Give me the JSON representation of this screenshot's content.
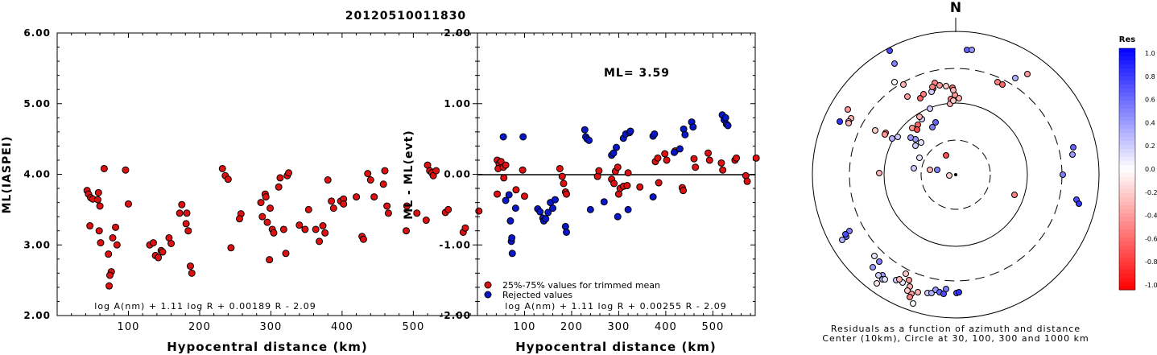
{
  "figure_title": "20120510011830",
  "chart_data": [
    {
      "type": "scatter",
      "id": "ml-vs-distance",
      "xlabel": "Hypocentral distance (km)",
      "ylabel": "ML(IASPEI)",
      "xlim": [
        0,
        590
      ],
      "ylim": [
        2.0,
        6.0
      ],
      "xticks": [
        "100",
        "200",
        "300",
        "400",
        "500"
      ],
      "yticks": [
        "2.00",
        "3.00",
        "4.00",
        "5.00",
        "6.00"
      ],
      "formula": "log A(nm) + 1.11 log R + 0.00189 R - 2.09",
      "marker_color": "#dd1111",
      "points": [
        [
          42,
          3.77
        ],
        [
          44,
          3.72
        ],
        [
          47,
          3.67
        ],
        [
          50,
          3.65
        ],
        [
          46,
          3.27
        ],
        [
          58,
          3.74
        ],
        [
          57,
          3.64
        ],
        [
          60,
          3.55
        ],
        [
          66,
          4.08
        ],
        [
          59,
          3.2
        ],
        [
          61,
          3.03
        ],
        [
          72,
          2.87
        ],
        [
          76,
          2.62
        ],
        [
          74,
          2.57
        ],
        [
          73,
          2.42
        ],
        [
          78,
          3.1
        ],
        [
          82,
          3.25
        ],
        [
          84,
          3.0
        ],
        [
          96,
          4.06
        ],
        [
          100,
          3.58
        ],
        [
          130,
          3.0
        ],
        [
          135,
          3.03
        ],
        [
          138,
          2.85
        ],
        [
          142,
          2.82
        ],
        [
          146,
          2.92
        ],
        [
          148,
          2.9
        ],
        [
          157,
          3.1
        ],
        [
          160,
          3.02
        ],
        [
          175,
          3.57
        ],
        [
          172,
          3.45
        ],
        [
          182,
          3.45
        ],
        [
          181,
          3.3
        ],
        [
          184,
          3.2
        ],
        [
          187,
          2.7
        ],
        [
          189,
          2.6
        ],
        [
          232,
          4.08
        ],
        [
          236,
          3.98
        ],
        [
          240,
          3.93
        ],
        [
          244,
          2.96
        ],
        [
          258,
          3.44
        ],
        [
          256,
          3.37
        ],
        [
          286,
          3.6
        ],
        [
          288,
          3.4
        ],
        [
          292,
          3.72
        ],
        [
          293,
          3.68
        ],
        [
          295,
          3.32
        ],
        [
          299,
          3.52
        ],
        [
          302,
          3.22
        ],
        [
          298,
          2.79
        ],
        [
          304,
          3.17
        ],
        [
          311,
          3.82
        ],
        [
          313,
          3.95
        ],
        [
          318,
          3.22
        ],
        [
          321,
          2.88
        ],
        [
          323,
          3.98
        ],
        [
          325,
          4.02
        ],
        [
          340,
          3.28
        ],
        [
          348,
          3.22
        ],
        [
          353,
          3.5
        ],
        [
          363,
          3.22
        ],
        [
          368,
          3.05
        ],
        [
          373,
          3.27
        ],
        [
          376,
          3.17
        ],
        [
          380,
          3.92
        ],
        [
          385,
          3.62
        ],
        [
          388,
          3.52
        ],
        [
          398,
          3.62
        ],
        [
          402,
          3.65
        ],
        [
          402,
          3.58
        ],
        [
          420,
          3.68
        ],
        [
          428,
          3.12
        ],
        [
          430,
          3.08
        ],
        [
          436,
          4.01
        ],
        [
          440,
          3.92
        ],
        [
          445,
          3.68
        ],
        [
          458,
          3.86
        ],
        [
          460,
          4.05
        ],
        [
          463,
          3.55
        ],
        [
          465,
          3.45
        ],
        [
          490,
          3.2
        ],
        [
          491,
          3.55
        ],
        [
          505,
          3.45
        ],
        [
          518,
          3.35
        ],
        [
          520,
          4.13
        ],
        [
          523,
          4.05
        ],
        [
          526,
          4.02
        ],
        [
          528,
          3.98
        ],
        [
          532,
          4.05
        ],
        [
          545,
          3.46
        ],
        [
          549,
          3.5
        ],
        [
          570,
          3.18
        ],
        [
          573,
          3.24
        ],
        [
          592,
          3.48
        ]
      ]
    },
    {
      "type": "scatter",
      "id": "residual-vs-distance",
      "xlabel": "Hypocentral distance (km)",
      "ylabel": "ML - ML(evt)",
      "xlim": [
        0,
        590
      ],
      "ylim": [
        -2.0,
        2.0
      ],
      "xticks": [
        "100",
        "200",
        "300",
        "400",
        "500"
      ],
      "yticks": [
        "-2.00",
        "-1.00",
        "0.00",
        "1.00",
        "2.00"
      ],
      "annotation": "ML= 3.59",
      "formula": "log A(nm) + 1.11 log R + 0.00255 R - 2.09",
      "legend": [
        {
          "label": "25%-75% values for trimmed mean",
          "color": "#dd1111"
        },
        {
          "label": "Rejected values",
          "color": "#0a17c8"
        }
      ],
      "used_points": [
        [
          42,
          0.2
        ],
        [
          46,
          0.15
        ],
        [
          44,
          0.08
        ],
        [
          50,
          0.18
        ],
        [
          55,
          0.1
        ],
        [
          60,
          0.13
        ],
        [
          42,
          -0.28
        ],
        [
          56,
          -0.05
        ],
        [
          82,
          -0.22
        ],
        [
          96,
          0.06
        ],
        [
          100,
          -0.31
        ],
        [
          175,
          0.08
        ],
        [
          180,
          -0.03
        ],
        [
          183,
          -0.13
        ],
        [
          187,
          -0.25
        ],
        [
          189,
          -0.28
        ],
        [
          255,
          -0.03
        ],
        [
          258,
          0.05
        ],
        [
          285,
          -0.07
        ],
        [
          290,
          -0.13
        ],
        [
          293,
          0.04
        ],
        [
          298,
          0.1
        ],
        [
          300,
          -0.28
        ],
        [
          303,
          -0.2
        ],
        [
          310,
          -0.17
        ],
        [
          318,
          -0.16
        ],
        [
          320,
          0.02
        ],
        [
          345,
          -0.18
        ],
        [
          378,
          0.18
        ],
        [
          383,
          0.23
        ],
        [
          385,
          -0.12
        ],
        [
          398,
          0.29
        ],
        [
          402,
          0.2
        ],
        [
          420,
          0.33
        ],
        [
          435,
          -0.19
        ],
        [
          437,
          -0.23
        ],
        [
          460,
          0.22
        ],
        [
          463,
          0.1
        ],
        [
          490,
          0.3
        ],
        [
          493,
          0.2
        ],
        [
          518,
          0.16
        ],
        [
          521,
          0.06
        ],
        [
          547,
          0.2
        ],
        [
          550,
          0.23
        ],
        [
          570,
          -0.02
        ],
        [
          573,
          -0.1
        ],
        [
          592,
          0.23
        ]
      ],
      "rejected_points": [
        [
          55,
          0.53
        ],
        [
          67,
          -0.29
        ],
        [
          70,
          -0.66
        ],
        [
          72,
          -0.95
        ],
        [
          73,
          -0.9
        ],
        [
          74,
          -1.12
        ],
        [
          81,
          -0.48
        ],
        [
          97,
          0.53
        ],
        [
          60,
          -0.37
        ],
        [
          128,
          -0.49
        ],
        [
          133,
          -0.53
        ],
        [
          139,
          -0.62
        ],
        [
          141,
          -0.66
        ],
        [
          145,
          -0.63
        ],
        [
          150,
          -0.54
        ],
        [
          155,
          -0.4
        ],
        [
          160,
          -0.48
        ],
        [
          165,
          -0.36
        ],
        [
          187,
          -0.74
        ],
        [
          189,
          -0.82
        ],
        [
          228,
          0.63
        ],
        [
          230,
          0.53
        ],
        [
          233,
          0.5
        ],
        [
          237,
          0.48
        ],
        [
          240,
          -0.5
        ],
        [
          269,
          -0.39
        ],
        [
          285,
          0.27
        ],
        [
          289,
          0.3
        ],
        [
          295,
          0.38
        ],
        [
          298,
          -0.6
        ],
        [
          310,
          0.51
        ],
        [
          315,
          0.57
        ],
        [
          323,
          0.59
        ],
        [
          325,
          0.61
        ],
        [
          320,
          -0.5
        ],
        [
          373,
          0.54
        ],
        [
          376,
          0.57
        ],
        [
          373,
          -0.32
        ],
        [
          418,
          0.31
        ],
        [
          430,
          0.36
        ],
        [
          438,
          0.64
        ],
        [
          441,
          0.56
        ],
        [
          455,
          0.74
        ],
        [
          458,
          0.67
        ],
        [
          520,
          0.84
        ],
        [
          524,
          0.77
        ],
        [
          527,
          0.8
        ],
        [
          529,
          0.71
        ],
        [
          532,
          0.69
        ]
      ]
    },
    {
      "type": "scatter",
      "id": "azimuth-residual-map",
      "north_label": "N",
      "caption": [
        "Residuals as a function of azimuth and distance",
        "Center (10km), Circle at 30, 100, 300 and 1000 km"
      ],
      "colorbar_title": "Res",
      "colorbar_ticks": [
        "1.0",
        "0.8",
        "0.6",
        "0.4",
        "0.2",
        "0.0",
        "-0.2",
        "-0.4",
        "-0.6",
        "-0.8",
        "-1.0"
      ],
      "station_residuals": [
        [
          -82,
          -154,
          0.7
        ],
        [
          -76,
          -138,
          0.5
        ],
        [
          -76,
          -115,
          0.0
        ],
        [
          -65,
          -112,
          -0.3
        ],
        [
          -60,
          -97,
          -0.4
        ],
        [
          -44,
          -95,
          -0.6
        ],
        [
          -40,
          -100,
          -0.5
        ],
        [
          -28,
          -107,
          -0.7
        ],
        [
          -26,
          -114,
          -0.5
        ],
        [
          -20,
          -111,
          -0.4
        ],
        [
          -30,
          -103,
          0.2
        ],
        [
          -12,
          -110,
          -0.2
        ],
        [
          -4,
          -108,
          -0.6
        ],
        [
          -29,
          -109,
          -0.5
        ],
        [
          4,
          -95,
          -0.3
        ],
        [
          52,
          -115,
          -0.5
        ],
        [
          58,
          -112,
          -0.6
        ],
        [
          14,
          -155,
          0.6
        ],
        [
          20,
          -155,
          0.4
        ],
        [
          -29,
          -59,
          0.5
        ],
        [
          -47,
          -62,
          -0.6
        ],
        [
          -54,
          -58,
          -0.4
        ],
        [
          -48,
          -56,
          -0.7
        ],
        [
          -25,
          -65,
          0.6
        ],
        [
          -32,
          -82,
          0.2
        ],
        [
          -42,
          -69,
          0.2
        ],
        [
          -45,
          -72,
          -0.3
        ],
        [
          -6,
          -94,
          -0.5
        ],
        [
          -7,
          -88,
          -0.3
        ],
        [
          -3,
          -92,
          -0.2
        ],
        [
          -1,
          -99,
          -0.4
        ],
        [
          -3,
          -105,
          -0.3
        ],
        [
          -134,
          -81,
          -0.4
        ],
        [
          -130,
          -70,
          -0.3
        ],
        [
          -133,
          -66,
          -0.2
        ],
        [
          -133,
          -64,
          -0.3
        ],
        [
          -50,
          -44,
          0.4
        ],
        [
          -56,
          -46,
          0.4
        ],
        [
          -45,
          -21,
          0.1
        ],
        [
          -43,
          -40,
          0.1
        ],
        [
          -50,
          -36,
          0.2
        ],
        [
          -23,
          -6,
          0.5
        ],
        [
          -12,
          -24,
          -0.7
        ],
        [
          -8,
          1,
          -0.2
        ],
        [
          -32,
          -6,
          -0.3
        ],
        [
          74,
          -120,
          0.3
        ],
        [
          89,
          -125,
          -0.4
        ],
        [
          133,
          0,
          0.5
        ],
        [
          145,
          -25,
          0.4
        ],
        [
          146,
          -34,
          0.6
        ],
        [
          150,
          31,
          0.7
        ],
        [
          153,
          36,
          0.8
        ],
        [
          73,
          25,
          -0.5
        ],
        [
          -52,
          -8,
          0.2
        ],
        [
          -72,
          -47,
          0.2
        ],
        [
          -79,
          -45,
          0.3
        ],
        [
          -95,
          -2,
          -0.3
        ],
        [
          -87,
          -52,
          -0.5
        ],
        [
          -88,
          -50,
          -0.4
        ],
        [
          -100,
          -55,
          -0.2
        ],
        [
          -144,
          -66,
          0.8
        ],
        [
          -132,
          70,
          0.5
        ],
        [
          -136,
          77,
          0.6
        ],
        [
          -137,
          74,
          0.7
        ],
        [
          -141,
          81,
          0.3
        ],
        [
          -101,
          101,
          0.1
        ],
        [
          -95,
          108,
          0.5
        ],
        [
          -103,
          115,
          0.4
        ],
        [
          -91,
          125,
          0.4
        ],
        [
          -91,
          130,
          0.3
        ],
        [
          -96,
          125,
          0.2
        ],
        [
          -98,
          135,
          -0.1
        ],
        [
          -88,
          130,
          0.1
        ],
        [
          -74,
          131,
          0.2
        ],
        [
          -66,
          134,
          0.1
        ],
        [
          -70,
          130,
          -0.3
        ],
        [
          -62,
          123,
          -0.2
        ],
        [
          -58,
          131,
          -0.4
        ],
        [
          -57,
          139,
          -0.3
        ],
        [
          -55,
          148,
          -0.4
        ],
        [
          -57,
          152,
          -0.5
        ],
        [
          -53,
          160,
          0.0
        ],
        [
          -60,
          144,
          -0.2
        ],
        [
          -47,
          146,
          -0.3
        ],
        [
          -35,
          147,
          0.2
        ],
        [
          -30,
          147,
          0.3
        ],
        [
          -12,
          142,
          0.5
        ],
        [
          -25,
          143,
          0.4
        ],
        [
          -20,
          146,
          0.6
        ],
        [
          1,
          147,
          0.7
        ],
        [
          4,
          146,
          0.8
        ],
        [
          -15,
          148,
          0.7
        ]
      ]
    }
  ]
}
